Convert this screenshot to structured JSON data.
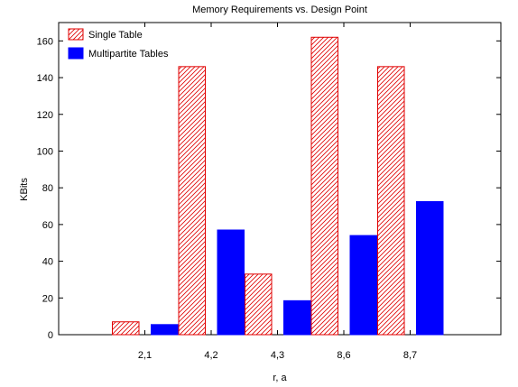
{
  "chart_data": {
    "type": "bar",
    "title": "Memory Requirements vs. Design Point",
    "xlabel": "r, a",
    "ylabel": "KBits",
    "categories": [
      "2,1",
      "4,2",
      "4,3",
      "8,6",
      "8,7"
    ],
    "ylim": [
      0,
      170
    ],
    "yticks": [
      0,
      20,
      40,
      60,
      80,
      100,
      120,
      140,
      160
    ],
    "grid": false,
    "legend_position": "top-left",
    "series": [
      {
        "name": "Single Table",
        "values": [
          7,
          146,
          33,
          162,
          146
        ],
        "color": "#e00000",
        "fill": "hatch"
      },
      {
        "name": "Multipartite Tables",
        "values": [
          5.5,
          57,
          18.5,
          54,
          72.5
        ],
        "color": "#0000ff",
        "fill": "solid"
      }
    ]
  }
}
